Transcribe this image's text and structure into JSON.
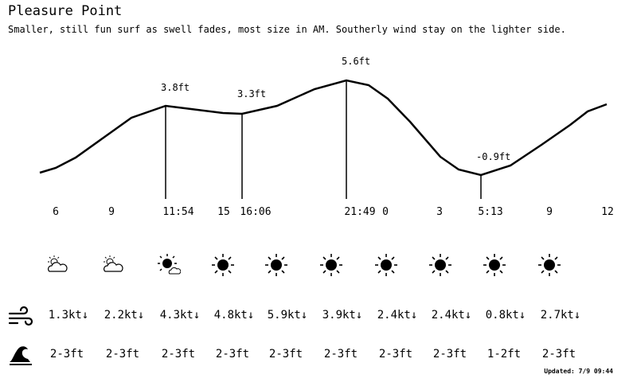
{
  "location": "Pleasure Point",
  "description": "Smaller, still fun surf as swell fades, most size in AM.  Southerly wind stay on the lighter side.",
  "chart_data": {
    "type": "line",
    "tide_labels": [
      "3.8ft",
      "3.3ft",
      "5.6ft",
      "-0.9ft"
    ],
    "x_labels": [
      "6",
      "9",
      "11:54",
      "15",
      "16:06",
      "21:49",
      "0",
      "3",
      "5:13",
      "9",
      "12"
    ]
  },
  "forecast": {
    "conditions": [
      {
        "icon": "partly-cloudy-icon"
      },
      {
        "icon": "partly-cloudy-icon"
      },
      {
        "icon": "sun-cloud-icon"
      },
      {
        "icon": "sun-icon"
      },
      {
        "icon": "sun-icon"
      },
      {
        "icon": "sun-icon"
      },
      {
        "icon": "sun-icon"
      },
      {
        "icon": "sun-icon"
      },
      {
        "icon": "sun-icon"
      },
      {
        "icon": "sun-icon"
      }
    ],
    "wind": [
      "1.3kt↓",
      "2.2kt↓",
      "4.3kt↓",
      "4.8kt↓",
      "5.9kt↓",
      "3.9kt↓",
      "2.4kt↓",
      "2.4kt↓",
      "0.8kt↓",
      "2.7kt↓"
    ],
    "surf": [
      "2-3ft",
      "2-3ft",
      "2-3ft",
      "2-3ft",
      "2-3ft",
      "2-3ft",
      "2-3ft",
      "2-3ft",
      "1-2ft",
      "2-3ft"
    ]
  },
  "updated": "Updated: 7/9 09:44"
}
